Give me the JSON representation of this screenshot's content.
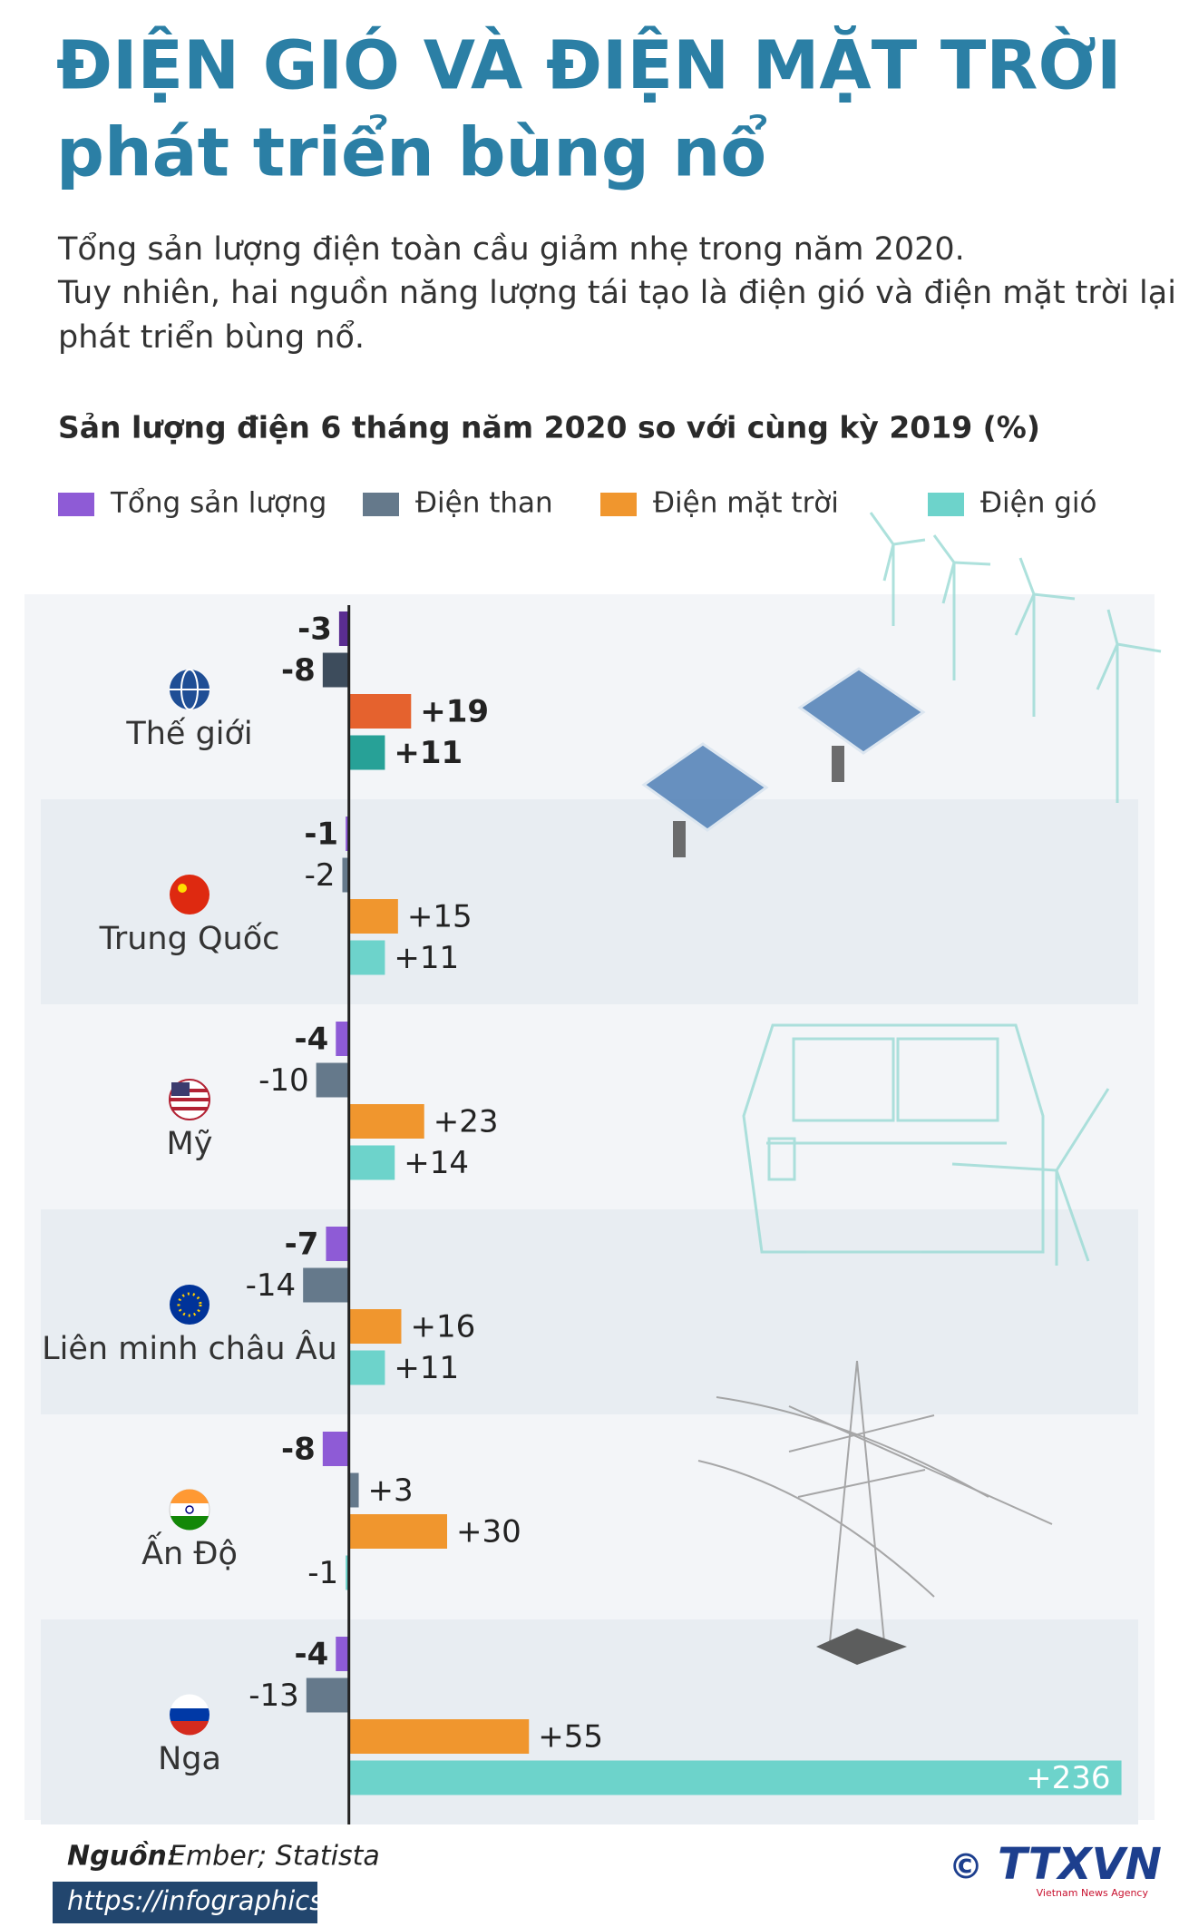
{
  "header": {
    "title": [
      "ĐIỆN GIÓ VÀ ĐIỆN MẶT TRỜI",
      "phát triển bùng nổ"
    ],
    "description": [
      "Tổng sản lượng điện toàn cầu giảm nhẹ trong năm 2020.",
      "Tuy nhiên, hai nguồn năng lượng tái tạo là điện gió và điện mặt trời lại",
      "phát triển bùng nổ."
    ]
  },
  "chart_data": {
    "type": "bar",
    "orientation": "horizontal",
    "title": "Sản lượng điện 6 tháng năm 2020 so với cùng kỳ 2019 (%)",
    "categories": [
      "Thế giới",
      "Trung Quốc",
      "Mỹ",
      "Liên minh châu Âu",
      "Ấn Độ",
      "Nga"
    ],
    "xlim": [
      -75,
      240
    ],
    "series": [
      {
        "name": "Tổng sản lượng",
        "color": "#8e5bd6",
        "highlight_color": "#5a2d91",
        "values": [
          -3,
          -1,
          -4,
          -7,
          -8,
          -4
        ]
      },
      {
        "name": "Điện than",
        "color": "#65798b",
        "highlight_color": "#3d4c5c",
        "values": [
          -8,
          -2,
          -10,
          -14,
          3,
          -13
        ],
        "value_labels": [
          "-8",
          "-2",
          "-10",
          "-14",
          "+3",
          "-13"
        ]
      },
      {
        "name": "Điện mặt trời",
        "color": "#f0962e",
        "highlight_color": "#e5622e",
        "values": [
          19,
          15,
          23,
          16,
          30,
          55
        ],
        "value_labels": [
          "+19",
          "+15",
          "+23",
          "+16",
          "+30",
          "+55"
        ]
      },
      {
        "name": "Điện gió",
        "color": "#6dd3cb",
        "highlight_color": "#27a197",
        "values": [
          11,
          11,
          14,
          11,
          -1,
          236
        ],
        "value_labels": [
          "+11",
          "+11",
          "+14",
          "+11",
          "-1",
          "+236"
        ]
      }
    ]
  },
  "footer": {
    "source_label": "Nguồn:",
    "source": "Ember; Statista",
    "url": "https://infographics.vn",
    "copyright": "©",
    "logo": "TTXVN",
    "logo_tagline": "Vietnam News Agency"
  }
}
